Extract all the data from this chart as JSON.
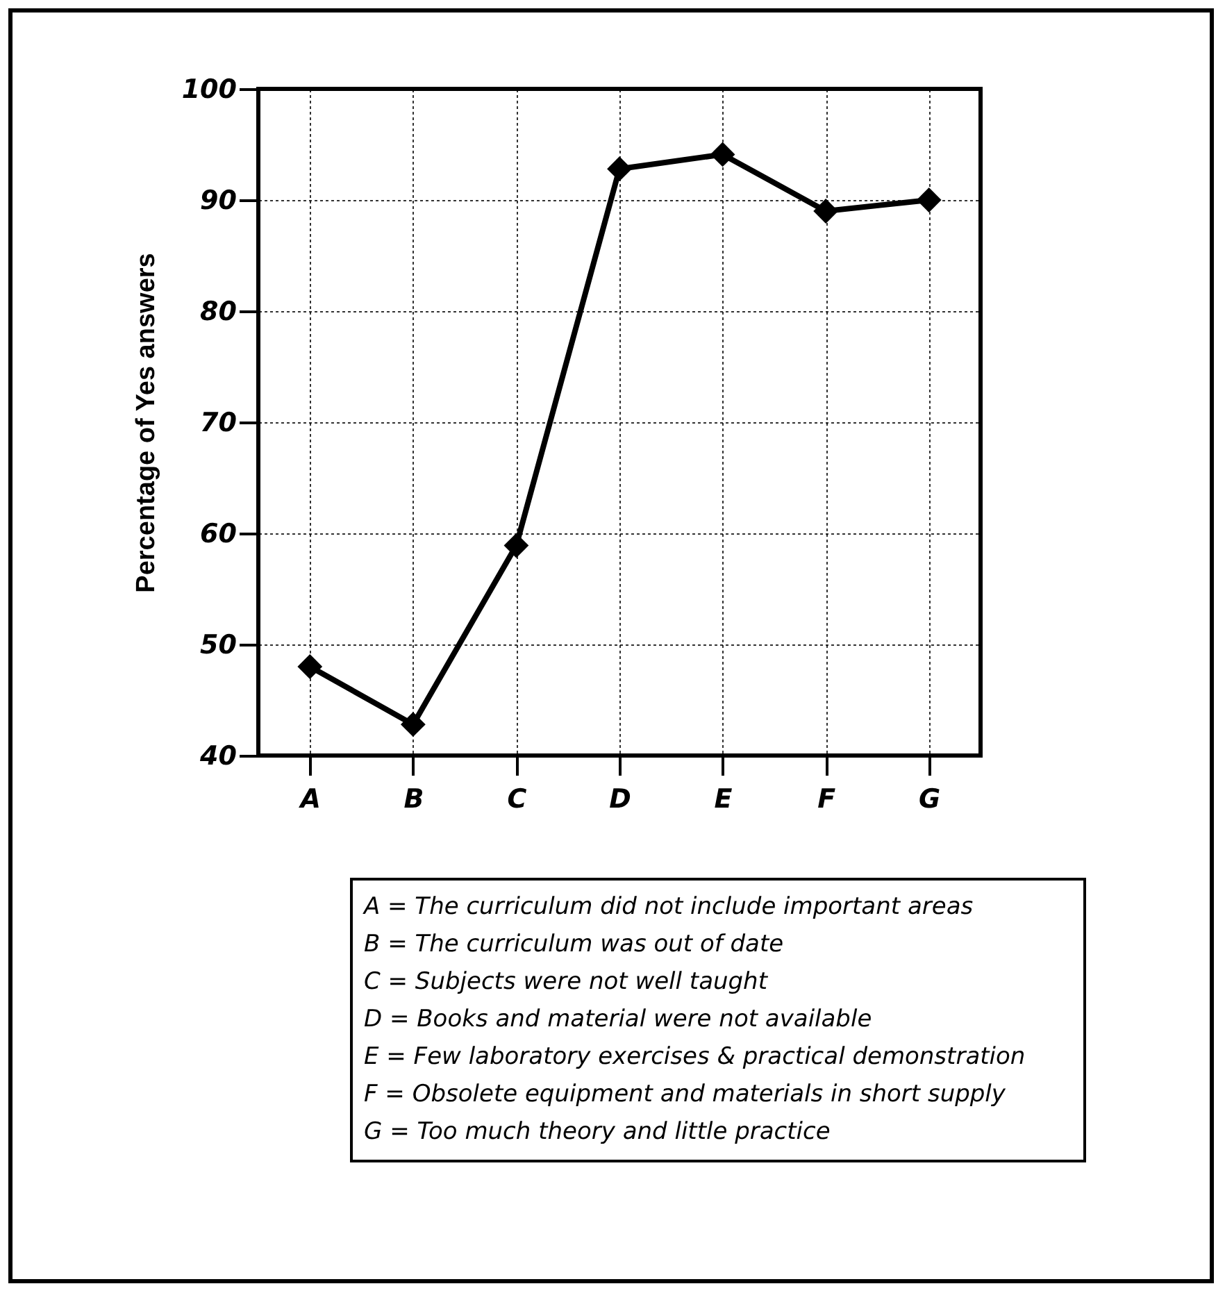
{
  "chart_data": {
    "type": "line",
    "ylabel": "Percentage of Yes answers",
    "categories": [
      "A",
      "B",
      "C",
      "D",
      "E",
      "F",
      "G"
    ],
    "series": [
      {
        "color": "#000000",
        "values": [
          48.0,
          42.8,
          58.9,
          92.8,
          94.1,
          89.0,
          90.0
        ]
      }
    ],
    "ylim": [
      40,
      100
    ],
    "yticks": [
      40,
      50,
      60,
      70,
      80,
      90,
      100
    ],
    "grid": true,
    "marker": "diamond",
    "line_style": "solid",
    "annotations": [
      "A = The curriculum did not include important areas",
      "B = The curriculum was out of date",
      "C = Subjects were not well taught",
      "D = Books and material were not available",
      "E = Few laboratory exercises & practical demonstration",
      "F = Obsolete equipment and materials in short supply",
      "G = Too much theory and little practice"
    ]
  }
}
